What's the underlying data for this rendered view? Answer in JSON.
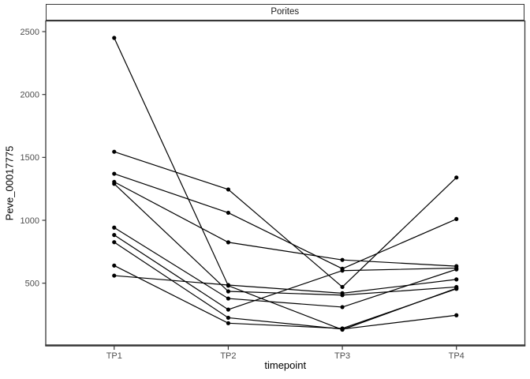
{
  "title_strip": {
    "label": "Porites"
  },
  "chart_data": {
    "type": "line",
    "title": "Porites",
    "xlabel": "timepoint",
    "ylabel": "Peve_00017775",
    "categories": [
      "TP1",
      "TP2",
      "TP3",
      "TP4"
    ],
    "y_ticks": [
      500,
      1000,
      1500,
      2000,
      2500
    ],
    "ylim": [
      5,
      2585
    ],
    "grid": false,
    "legend": "none",
    "point_color": "#000000",
    "line_color": "#000000",
    "axis_text_color": "#4d4d4d",
    "border_color": "#373737",
    "series": [
      {
        "name": "s1",
        "values": [
          2450,
          480,
          130,
          460
        ]
      },
      {
        "name": "s2",
        "values": [
          1545,
          1245,
          470,
          1340
        ]
      },
      {
        "name": "s3",
        "values": [
          1370,
          1060,
          615,
          1010
        ]
      },
      {
        "name": "s4",
        "values": [
          1305,
          825,
          685,
          635
        ]
      },
      {
        "name": "s5",
        "values": [
          1290,
          435,
          405,
          470
        ]
      },
      {
        "name": "s6",
        "values": [
          942,
          378,
          310,
          610
        ]
      },
      {
        "name": "s7",
        "values": [
          883,
          290,
          600,
          620
        ]
      },
      {
        "name": "s8",
        "values": [
          826,
          225,
          135,
          245
        ]
      },
      {
        "name": "s9",
        "values": [
          640,
          182,
          140,
          455
        ]
      },
      {
        "name": "s10",
        "values": [
          560,
          485,
          420,
          530
        ]
      }
    ]
  }
}
